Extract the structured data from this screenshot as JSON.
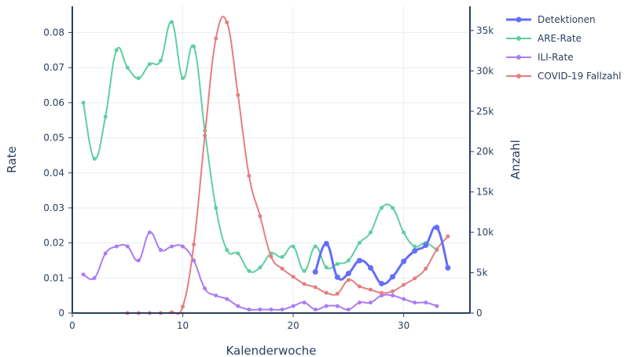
{
  "chart_data": {
    "type": "line",
    "title": "",
    "xlabel": "Kalenderwoche",
    "ylabel_left": "Rate",
    "ylabel_right": "Anzahl",
    "xlim": [
      0,
      36
    ],
    "ylim_left": [
      0,
      0.0875
    ],
    "ylim_right": [
      0,
      38000
    ],
    "x_ticks": [
      0,
      10,
      20,
      30
    ],
    "x_tick_labels": [
      "0",
      "10",
      "20",
      "30"
    ],
    "y_left_ticks": [
      0,
      0.01,
      0.02,
      0.03,
      0.04,
      0.05,
      0.06,
      0.07,
      0.08
    ],
    "y_left_tick_labels": [
      "0",
      "0.01",
      "0.02",
      "0.03",
      "0.04",
      "0.05",
      "0.06",
      "0.07",
      "0.08"
    ],
    "y_right_ticks": [
      0,
      5000,
      10000,
      15000,
      20000,
      25000,
      30000,
      35000
    ],
    "y_right_tick_labels": [
      "0",
      "5k",
      "10k",
      "15k",
      "20k",
      "25k",
      "30k",
      "35k"
    ],
    "grid": true,
    "legend_position": "top-right",
    "series": [
      {
        "name": "Detektionen",
        "axis": "right",
        "color": "#636efa",
        "width": 3,
        "x": [
          22,
          23,
          24,
          25,
          26,
          27,
          28,
          29,
          30,
          31,
          32,
          33,
          34
        ],
        "y": [
          5100,
          8600,
          4450,
          4900,
          6500,
          5600,
          3650,
          4500,
          6400,
          7700,
          8400,
          10600,
          5600
        ]
      },
      {
        "name": "ARE-Rate",
        "axis": "left",
        "color": "#5fcfa0",
        "width": 2,
        "x": [
          1,
          2,
          3,
          4,
          5,
          6,
          7,
          8,
          9,
          10,
          11,
          12,
          13,
          14,
          15,
          16,
          17,
          18,
          19,
          20,
          21,
          22,
          23,
          24,
          25,
          26,
          27,
          28,
          29,
          30,
          31,
          32,
          33
        ],
        "y": [
          0.06,
          0.044,
          0.056,
          0.075,
          0.07,
          0.067,
          0.071,
          0.072,
          0.083,
          0.067,
          0.076,
          0.052,
          0.03,
          0.018,
          0.017,
          0.012,
          0.013,
          0.017,
          0.016,
          0.019,
          0.012,
          0.019,
          0.013,
          0.014,
          0.015,
          0.02,
          0.023,
          0.03,
          0.03,
          0.023,
          0.019,
          0.02,
          0.018
        ]
      },
      {
        "name": "ILI-Rate",
        "axis": "left",
        "color": "#ab7cf5",
        "width": 2,
        "x": [
          1,
          2,
          3,
          4,
          5,
          6,
          7,
          8,
          9,
          10,
          11,
          12,
          13,
          14,
          15,
          16,
          17,
          18,
          19,
          20,
          21,
          22,
          23,
          24,
          25,
          26,
          27,
          28,
          29,
          30,
          31,
          32,
          33
        ],
        "y": [
          0.011,
          0.01,
          0.017,
          0.019,
          0.019,
          0.015,
          0.023,
          0.018,
          0.019,
          0.019,
          0.015,
          0.007,
          0.005,
          0.004,
          0.002,
          0.001,
          0.001,
          0.001,
          0.001,
          0.002,
          0.003,
          0.001,
          0.002,
          0.002,
          0.001,
          0.003,
          0.003,
          0.005,
          0.005,
          0.004,
          0.003,
          0.003,
          0.002
        ]
      },
      {
        "name": "COVID-19 Fallzahl",
        "axis": "right",
        "color": "#e57f7f",
        "width": 2,
        "x": [
          5,
          6,
          7,
          8,
          9,
          10,
          11,
          12,
          13,
          14,
          15,
          16,
          17,
          18,
          19,
          20,
          21,
          22,
          23,
          24,
          25,
          26,
          27,
          28,
          29,
          30,
          31,
          32,
          33,
          34
        ],
        "y": [
          0,
          0,
          0,
          0,
          100,
          800,
          8500,
          22000,
          34000,
          36000,
          27000,
          17000,
          12000,
          7000,
          5500,
          4500,
          3600,
          3200,
          2500,
          2400,
          4100,
          3300,
          2900,
          2500,
          2700,
          3500,
          4300,
          5500,
          7900,
          9500
        ]
      }
    ]
  }
}
